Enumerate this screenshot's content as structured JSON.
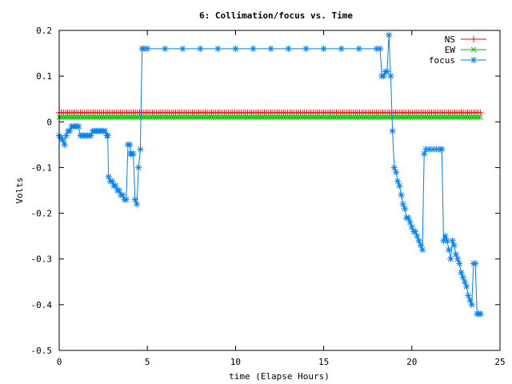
{
  "chart_data": {
    "type": "line",
    "title": "6: Collimation/focus vs. Time",
    "xlabel": "time (Elapse Hours)",
    "ylabel": "Volts",
    "xlim": [
      0,
      25
    ],
    "ylim": [
      -0.5,
      0.2
    ],
    "xticks": [
      0,
      5,
      10,
      15,
      20,
      25
    ],
    "xtick_labels": [
      "0",
      "5",
      "10",
      "15",
      "20",
      "25"
    ],
    "yticks": [
      -0.5,
      -0.4,
      -0.3,
      -0.2,
      -0.1,
      0,
      0.1,
      0.2
    ],
    "ytick_labels": [
      "-0.5",
      "-0.4",
      "-0.3",
      "-0.2",
      "-0.1",
      "0",
      "0.1",
      "0.2"
    ],
    "grid": false,
    "legend_position": "top-right",
    "series": [
      {
        "name": "NS",
        "color": "#ff0000",
        "marker": "plus",
        "constant": 0.02,
        "x_range": [
          0,
          23.9
        ],
        "x_step": 0.12
      },
      {
        "name": "EW",
        "color": "#00c000",
        "marker": "cross",
        "constant": 0.01,
        "x_range": [
          0,
          23.9
        ],
        "x_step": 0.12
      },
      {
        "name": "focus",
        "color": "#0080ff",
        "marker": "star",
        "points": [
          [
            0.0,
            -0.03
          ],
          [
            0.1,
            -0.035
          ],
          [
            0.2,
            -0.04
          ],
          [
            0.3,
            -0.05
          ],
          [
            0.4,
            -0.03
          ],
          [
            0.5,
            -0.02
          ],
          [
            0.6,
            -0.02
          ],
          [
            0.7,
            -0.01
          ],
          [
            0.8,
            -0.01
          ],
          [
            0.9,
            -0.01
          ],
          [
            1.0,
            -0.01
          ],
          [
            1.1,
            -0.01
          ],
          [
            1.2,
            -0.03
          ],
          [
            1.3,
            -0.03
          ],
          [
            1.4,
            -0.03
          ],
          [
            1.5,
            -0.03
          ],
          [
            1.6,
            -0.03
          ],
          [
            1.7,
            -0.03
          ],
          [
            1.8,
            -0.03
          ],
          [
            1.9,
            -0.02
          ],
          [
            2.0,
            -0.02
          ],
          [
            2.1,
            -0.02
          ],
          [
            2.2,
            -0.02
          ],
          [
            2.3,
            -0.02
          ],
          [
            2.4,
            -0.02
          ],
          [
            2.5,
            -0.02
          ],
          [
            2.6,
            -0.02
          ],
          [
            2.7,
            -0.03
          ],
          [
            2.75,
            -0.03
          ],
          [
            2.8,
            -0.12
          ],
          [
            2.9,
            -0.13
          ],
          [
            3.0,
            -0.13
          ],
          [
            3.1,
            -0.14
          ],
          [
            3.2,
            -0.14
          ],
          [
            3.3,
            -0.15
          ],
          [
            3.4,
            -0.15
          ],
          [
            3.5,
            -0.16
          ],
          [
            3.6,
            -0.16
          ],
          [
            3.7,
            -0.17
          ],
          [
            3.8,
            -0.17
          ],
          [
            3.9,
            -0.05
          ],
          [
            4.0,
            -0.05
          ],
          [
            4.05,
            -0.07
          ],
          [
            4.1,
            -0.07
          ],
          [
            4.2,
            -0.07
          ],
          [
            4.3,
            -0.17
          ],
          [
            4.4,
            -0.18
          ],
          [
            4.5,
            -0.1
          ],
          [
            4.6,
            -0.06
          ],
          [
            4.7,
            0.16
          ],
          [
            4.8,
            0.16
          ],
          [
            5.0,
            0.16
          ],
          [
            6.0,
            0.16
          ],
          [
            7.0,
            0.16
          ],
          [
            8.0,
            0.16
          ],
          [
            9.0,
            0.16
          ],
          [
            10.0,
            0.16
          ],
          [
            11.0,
            0.16
          ],
          [
            12.0,
            0.16
          ],
          [
            13.0,
            0.16
          ],
          [
            14.0,
            0.16
          ],
          [
            15.0,
            0.16
          ],
          [
            16.0,
            0.16
          ],
          [
            17.0,
            0.16
          ],
          [
            18.0,
            0.16
          ],
          [
            18.2,
            0.16
          ],
          [
            18.3,
            0.1
          ],
          [
            18.4,
            0.1
          ],
          [
            18.5,
            0.11
          ],
          [
            18.6,
            0.11
          ],
          [
            18.7,
            0.19
          ],
          [
            18.8,
            0.1
          ],
          [
            18.9,
            -0.02
          ],
          [
            19.0,
            -0.1
          ],
          [
            19.1,
            -0.11
          ],
          [
            19.2,
            -0.13
          ],
          [
            19.3,
            -0.14
          ],
          [
            19.4,
            -0.16
          ],
          [
            19.5,
            -0.18
          ],
          [
            19.6,
            -0.19
          ],
          [
            19.7,
            -0.21
          ],
          [
            19.8,
            -0.21
          ],
          [
            19.9,
            -0.22
          ],
          [
            20.0,
            -0.23
          ],
          [
            20.1,
            -0.24
          ],
          [
            20.2,
            -0.24
          ],
          [
            20.3,
            -0.25
          ],
          [
            20.4,
            -0.26
          ],
          [
            20.5,
            -0.27
          ],
          [
            20.6,
            -0.28
          ],
          [
            20.7,
            -0.07
          ],
          [
            20.8,
            -0.06
          ],
          [
            21.0,
            -0.06
          ],
          [
            21.2,
            -0.06
          ],
          [
            21.4,
            -0.06
          ],
          [
            21.6,
            -0.06
          ],
          [
            21.7,
            -0.06
          ],
          [
            21.8,
            -0.26
          ],
          [
            21.9,
            -0.25
          ],
          [
            22.0,
            -0.26
          ],
          [
            22.1,
            -0.28
          ],
          [
            22.2,
            -0.3
          ],
          [
            22.3,
            -0.26
          ],
          [
            22.4,
            -0.27
          ],
          [
            22.5,
            -0.29
          ],
          [
            22.6,
            -0.3
          ],
          [
            22.7,
            -0.31
          ],
          [
            22.8,
            -0.33
          ],
          [
            22.9,
            -0.34
          ],
          [
            23.0,
            -0.35
          ],
          [
            23.1,
            -0.36
          ],
          [
            23.2,
            -0.38
          ],
          [
            23.3,
            -0.39
          ],
          [
            23.4,
            -0.4
          ],
          [
            23.5,
            -0.31
          ],
          [
            23.6,
            -0.31
          ],
          [
            23.7,
            -0.42
          ],
          [
            23.8,
            -0.42
          ],
          [
            23.9,
            -0.42
          ]
        ]
      }
    ]
  }
}
